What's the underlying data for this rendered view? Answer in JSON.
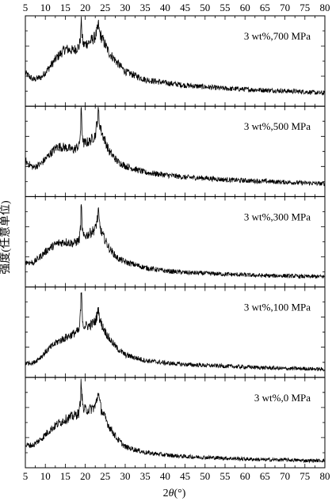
{
  "chart_data": {
    "type": "line",
    "layout": "stacked-panels",
    "xlabel": "2θ(°)",
    "xlabel_prefix": "2",
    "xlabel_symbol": "θ",
    "xlabel_unit": "(°)",
    "ylabel": "强度(任意单位)",
    "xlim": [
      5,
      80
    ],
    "xticks": [
      5,
      10,
      15,
      20,
      25,
      30,
      35,
      40,
      45,
      50,
      55,
      60,
      65,
      70,
      75,
      80
    ],
    "x_tick_labels_top": true,
    "x_tick_labels_bottom": true,
    "y_tick_labels": false,
    "grid": false,
    "line_color": "#000000",
    "x": [
      5,
      7,
      9,
      11,
      13,
      15,
      17,
      18.5,
      19,
      19.5,
      21,
      22.5,
      23.2,
      24,
      26,
      28,
      30,
      35,
      40,
      45,
      50,
      55,
      60,
      65,
      70,
      75,
      80
    ],
    "panels": [
      {
        "label": "3 wt%,700 MPa",
        "values": [
          0.35,
          0.27,
          0.3,
          0.42,
          0.55,
          0.65,
          0.63,
          0.68,
          0.88,
          0.7,
          0.73,
          0.8,
          0.9,
          0.8,
          0.6,
          0.48,
          0.37,
          0.27,
          0.23,
          0.2,
          0.18,
          0.16,
          0.15,
          0.14,
          0.13,
          0.12,
          0.1
        ]
      },
      {
        "label": "3 wt%,500 MPa",
        "values": [
          0.38,
          0.3,
          0.35,
          0.46,
          0.56,
          0.55,
          0.52,
          0.57,
          0.88,
          0.6,
          0.62,
          0.7,
          0.95,
          0.75,
          0.5,
          0.38,
          0.32,
          0.24,
          0.21,
          0.18,
          0.17,
          0.15,
          0.14,
          0.13,
          0.12,
          0.11,
          0.1
        ]
      },
      {
        "label": "3 wt%,300 MPa",
        "values": [
          0.25,
          0.24,
          0.33,
          0.42,
          0.48,
          0.5,
          0.48,
          0.52,
          0.8,
          0.56,
          0.6,
          0.66,
          0.82,
          0.62,
          0.42,
          0.3,
          0.25,
          0.18,
          0.14,
          0.12,
          0.11,
          0.1,
          0.09,
          0.08,
          0.08,
          0.07,
          0.07
        ]
      },
      {
        "label": "3 wt%,100 MPa",
        "values": [
          0.12,
          0.12,
          0.2,
          0.3,
          0.38,
          0.43,
          0.48,
          0.52,
          0.88,
          0.58,
          0.58,
          0.63,
          0.75,
          0.6,
          0.42,
          0.3,
          0.22,
          0.15,
          0.12,
          0.1,
          0.09,
          0.08,
          0.07,
          0.06,
          0.05,
          0.05,
          0.04
        ]
      },
      {
        "label": "3 wt%,0 MPa",
        "values": [
          0.22,
          0.22,
          0.3,
          0.4,
          0.48,
          0.54,
          0.58,
          0.62,
          0.9,
          0.66,
          0.66,
          0.7,
          0.85,
          0.66,
          0.45,
          0.3,
          0.2,
          0.13,
          0.1,
          0.08,
          0.07,
          0.06,
          0.05,
          0.04,
          0.04,
          0.03,
          0.03
        ]
      }
    ]
  }
}
